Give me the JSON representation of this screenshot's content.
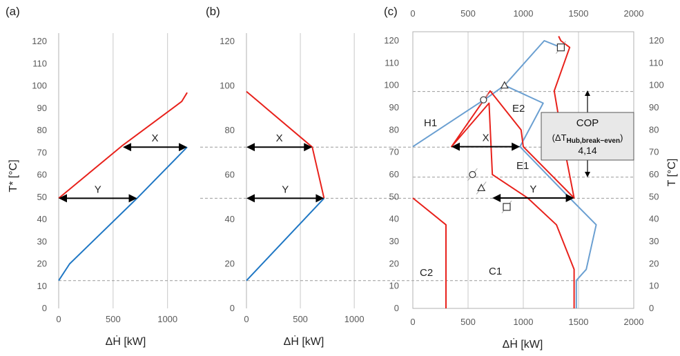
{
  "colors": {
    "hot": "#e8211b",
    "cold": "#1f77c4",
    "cold_c": "#6a9fd1",
    "arrow": "#000000",
    "grid": "#c8c8c8",
    "dash": "#999999"
  },
  "chart_data": [
    {
      "type": "line",
      "panel_label": "(a)",
      "ylabel": "T* [°C]",
      "xlabel": "ΔḢ [kW]",
      "xlim": [
        0,
        1300
      ],
      "ylim": [
        0,
        125
      ],
      "xticks": [
        0,
        500,
        1000
      ],
      "yticks": [
        0,
        10,
        20,
        30,
        40,
        50,
        60,
        70,
        80,
        90,
        100,
        110,
        120
      ],
      "grid": "vertical",
      "series": [
        {
          "color": "hot",
          "x": [
            0,
            580,
            1130,
            1180
          ],
          "y": [
            49.5,
            73,
            93,
            97
          ]
        },
        {
          "color": "cold",
          "x": [
            0,
            100,
            720,
            1180
          ],
          "y": [
            12.5,
            20,
            49.5,
            72.5
          ]
        }
      ],
      "annotations": [
        {
          "text": "X",
          "x_from": 590,
          "x_to": 1180,
          "y": 72.5
        },
        {
          "text": "Y",
          "x_from": 0,
          "x_to": 720,
          "y": 49.5
        }
      ]
    },
    {
      "type": "line",
      "panel_label": "(b)",
      "xlabel": "ΔḢ [kW]",
      "xlim": [
        0,
        1300
      ],
      "ylim": [
        0,
        125
      ],
      "xticks": [
        0,
        500,
        1000
      ],
      "yticks": [
        0,
        20,
        40,
        60,
        80,
        100,
        120
      ],
      "grid": "vertical",
      "series": [
        {
          "color": "hot",
          "x": [
            0,
            610,
            720
          ],
          "y": [
            97.5,
            72.5,
            49.5
          ]
        },
        {
          "color": "cold",
          "x": [
            0,
            720
          ],
          "y": [
            12.5,
            49.5
          ]
        }
      ],
      "annotations": [
        {
          "text": "X",
          "x_from": 0,
          "x_to": 610,
          "y": 72.5
        },
        {
          "text": "Y",
          "x_from": 0,
          "x_to": 720,
          "y": 49.5
        }
      ]
    },
    {
      "type": "line",
      "panel_label": "(c)",
      "xlabel": "ΔḢ [kW]",
      "y2label": "T [°C]",
      "xlim": [
        0,
        2000
      ],
      "ylim": [
        0,
        125
      ],
      "xticks": [
        0,
        500,
        1000,
        1500,
        2000
      ],
      "yticks": [
        0,
        10,
        20,
        30,
        40,
        50,
        60,
        70,
        80,
        90,
        100,
        110,
        120
      ],
      "grid": "vertical",
      "series": [
        {
          "name_label": "H1",
          "color": "cold_c",
          "x": [
            0,
            690,
            830,
            1190,
            1340
          ],
          "y": [
            72.5,
            95,
            100,
            120,
            117
          ]
        },
        {
          "color": "cold_c",
          "x": [
            830,
            1180,
            970,
            1420,
            1660,
            1570,
            1480,
            1480
          ],
          "y": [
            100,
            92,
            72.5,
            49.5,
            37.5,
            17.5,
            12.5,
            0
          ]
        },
        {
          "color": "hot",
          "x": [
            1320,
            1340,
            1420,
            1280,
            1340,
            1460,
            1000,
            980,
            700,
            350,
            690,
            720,
            1040,
            1300,
            1460,
            1460
          ],
          "y": [
            122,
            120,
            117,
            97.5,
            80,
            49.5,
            72.5,
            80,
            97.5,
            72.5,
            92,
            60,
            49.5,
            37.5,
            17.5,
            0
          ]
        },
        {
          "color": "hot",
          "x": [
            0,
            300,
            300
          ],
          "y": [
            49.5,
            37.5,
            0
          ]
        }
      ],
      "region_labels": [
        "E2",
        "E1",
        "C1",
        "C2",
        "H1"
      ],
      "annotations": [
        {
          "text": "X",
          "x_from": 350,
          "x_to": 970,
          "y": 72.5
        },
        {
          "text": "Y",
          "x_from": 720,
          "x_to": 1460,
          "y": 49.5
        }
      ],
      "callout": {
        "line1": "COP",
        "line2": "(ΔT",
        "line2_sub": "Hub,break−even",
        "line2_end": ")",
        "line3": "4,14"
      }
    }
  ],
  "text": {
    "panel_a": "(a)",
    "panel_b": "(b)",
    "panel_c": "(c)",
    "ylabel_left": "T* [°C]",
    "ylabel_right": "T [°C]",
    "xlabel": "ΔḢ [kW]",
    "x": "X",
    "y": "Y",
    "e1": "E1",
    "e2": "E2",
    "c1": "C1",
    "c2": "C2",
    "h1": "H1",
    "cop": "COP",
    "cop_open": "(ΔT",
    "cop_sub": "Hub,break−even",
    "cop_close": ")",
    "cop_value": "4,14"
  }
}
